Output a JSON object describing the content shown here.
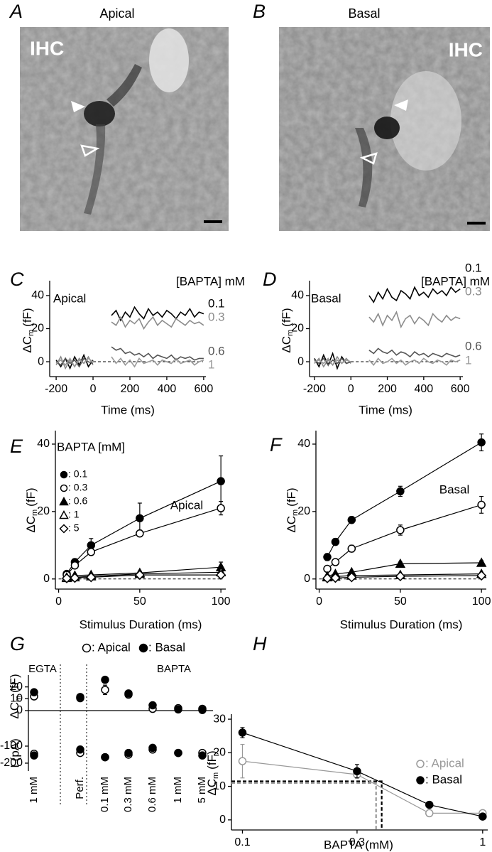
{
  "images": [
    {
      "label": "A",
      "title": "Apical",
      "text": "IHC"
    },
    {
      "label": "B",
      "title": "Basal",
      "text": "IHC"
    }
  ],
  "chart_data": [
    {
      "type": "line",
      "label": "C",
      "title": "Apical",
      "legend_title": "[BAPTA] mM",
      "xlabel": "Time (ms)",
      "ylabel": [
        "ΔC",
        "m",
        "(fF)"
      ],
      "xlim": [
        -235,
        612
      ],
      "ylim": [
        -9,
        49
      ],
      "xticks": [
        -200,
        0,
        200,
        400,
        600
      ],
      "yticks": [
        0,
        20,
        40
      ],
      "dashed_zero": true,
      "x": [
        -200,
        -175,
        -150,
        -125,
        -100,
        -75,
        -50,
        -25,
        0,
        50,
        100,
        125,
        150,
        175,
        200,
        225,
        250,
        275,
        300,
        325,
        350,
        375,
        400,
        425,
        450,
        475,
        500,
        525,
        550,
        575,
        600
      ],
      "series": [
        {
          "name": "0.1",
          "color": "#000000",
          "values": [
            1,
            -3,
            2,
            -4,
            3,
            -2,
            4,
            -3,
            1,
            null,
            28,
            31,
            25,
            30,
            27,
            33,
            29,
            26,
            32,
            28,
            30,
            27,
            31,
            29,
            26,
            30,
            28,
            32,
            27,
            30,
            29
          ]
        },
        {
          "name": "0.3",
          "color": "#8c8c8c",
          "values": [
            -2,
            3,
            -4,
            1,
            -3,
            2,
            -1,
            3,
            -2,
            null,
            24,
            22,
            27,
            21,
            25,
            23,
            26,
            20,
            24,
            27,
            22,
            25,
            23,
            21,
            26,
            24,
            22,
            25,
            23,
            24,
            22
          ]
        },
        {
          "name": "0.6",
          "color": "#555555",
          "values": [
            0,
            -2,
            2,
            -1,
            1,
            -3,
            2,
            0,
            -1,
            null,
            9,
            7,
            8,
            5,
            6,
            4,
            5,
            3,
            5,
            2,
            4,
            3,
            2,
            4,
            1,
            3,
            2,
            3,
            1,
            2,
            2
          ]
        },
        {
          "name": "1",
          "color": "#9a9a9a",
          "values": [
            -1,
            1,
            -2,
            2,
            -3,
            1,
            -1,
            2,
            0,
            null,
            3,
            -1,
            2,
            -2,
            1,
            -3,
            2,
            -1,
            0,
            1,
            -2,
            1,
            0,
            -1,
            2,
            -1,
            0,
            1,
            -2,
            0,
            1
          ]
        }
      ]
    },
    {
      "type": "line",
      "label": "D",
      "title": "Basal",
      "legend_title": "[BAPTA] mM",
      "xlabel": "Time (ms)",
      "ylabel": [
        "ΔC",
        "m",
        "(fF)"
      ],
      "xlim": [
        -227,
        615
      ],
      "ylim": [
        -9,
        49
      ],
      "xticks": [
        -200,
        0,
        200,
        400,
        600
      ],
      "yticks": [
        0,
        20,
        40
      ],
      "dashed_zero": true,
      "x": [
        -200,
        -175,
        -150,
        -125,
        -100,
        -75,
        -50,
        -25,
        0,
        50,
        100,
        125,
        150,
        175,
        200,
        225,
        250,
        275,
        300,
        325,
        350,
        375,
        400,
        425,
        450,
        475,
        500,
        525,
        550,
        575,
        600
      ],
      "series": [
        {
          "name": "0.1",
          "color": "#000000",
          "values": [
            2,
            -3,
            4,
            -2,
            5,
            -4,
            3,
            -1,
            0,
            null,
            40,
            36,
            42,
            38,
            44,
            39,
            37,
            43,
            41,
            38,
            45,
            40,
            42,
            39,
            44,
            41,
            43,
            40,
            45,
            42,
            44
          ]
        },
        {
          "name": "0.3",
          "color": "#8c8c8c",
          "values": [
            -1,
            2,
            -3,
            1,
            -2,
            3,
            -1,
            2,
            -1,
            null,
            27,
            24,
            29,
            22,
            28,
            25,
            30,
            21,
            26,
            28,
            23,
            27,
            25,
            22,
            29,
            26,
            24,
            28,
            25,
            27,
            26
          ]
        },
        {
          "name": "0.6",
          "color": "#555555",
          "values": [
            1,
            -1,
            2,
            -2,
            1,
            -1,
            2,
            -1,
            0,
            null,
            7,
            5,
            8,
            6,
            5,
            7,
            4,
            6,
            5,
            3,
            6,
            4,
            5,
            3,
            5,
            4,
            3,
            5,
            4,
            3,
            4
          ]
        },
        {
          "name": "1",
          "color": "#9a9a9a",
          "values": [
            0,
            1,
            -1,
            2,
            -2,
            1,
            -1,
            1,
            0,
            null,
            1,
            -2,
            2,
            -1,
            0,
            2,
            -1,
            1,
            -2,
            0,
            1,
            -1,
            2,
            0,
            -1,
            1,
            0,
            -2,
            1,
            0,
            1
          ]
        }
      ]
    },
    {
      "type": "line",
      "label": "E",
      "title": "Apical",
      "legend_title": "BAPTA [mM]",
      "xlabel": "Stimulus Duration (ms)",
      "ylabel": [
        "ΔC",
        "m",
        "(fF)"
      ],
      "xlim": [
        -2,
        103
      ],
      "ylim": [
        -3,
        44
      ],
      "xticks": [
        0,
        50,
        100
      ],
      "yticks": [
        0,
        20,
        40
      ],
      "dashed_zero": true,
      "x": [
        5,
        10,
        20,
        50,
        100
      ],
      "series": [
        {
          "name": ": 0.1",
          "color": "#000000",
          "marker": "circle",
          "filled": true,
          "values": [
            1.5,
            5,
            10,
            18,
            29
          ],
          "errors": [
            0.5,
            1,
            2,
            4.5,
            7.5
          ]
        },
        {
          "name": ": 0.3",
          "color": "#000000",
          "marker": "circle",
          "filled": false,
          "values": [
            1.2,
            4,
            8,
            13.5,
            21
          ],
          "errors": [
            0.3,
            0.5,
            1,
            1,
            2
          ]
        },
        {
          "name": ": 0.6",
          "color": "#000000",
          "marker": "triangle",
          "filled": true,
          "values": [
            0.5,
            1,
            1.2,
            1.8,
            3.5
          ],
          "errors": [
            0.2,
            0.3,
            0.3,
            0.5,
            1.5
          ]
        },
        {
          "name": ": 1",
          "color": "#000000",
          "marker": "triangle",
          "filled": false,
          "values": [
            0.3,
            0.5,
            0.8,
            1.5,
            2
          ],
          "errors": [
            0.2,
            0.2,
            0.3,
            0.4,
            0.5
          ]
        },
        {
          "name": ": 5",
          "color": "#000000",
          "marker": "diamond",
          "filled": false,
          "values": [
            0.2,
            0.3,
            0.5,
            1.2,
            1.2
          ],
          "errors": [
            0.1,
            0.2,
            0.2,
            0.3,
            0.4
          ]
        }
      ]
    },
    {
      "type": "line",
      "label": "F",
      "title": "Basal",
      "xlabel": "Stimulus Duration (ms)",
      "ylabel": [
        "ΔC",
        "m",
        "(fF)"
      ],
      "xlim": [
        -2,
        103
      ],
      "ylim": [
        -3,
        44
      ],
      "xticks": [
        0,
        50,
        100
      ],
      "yticks": [
        0,
        20,
        40
      ],
      "dashed_zero": true,
      "x": [
        5,
        10,
        20,
        50,
        100
      ],
      "series": [
        {
          "color": "#000000",
          "marker": "circle",
          "filled": true,
          "values": [
            6.5,
            11,
            17.5,
            26,
            40.5
          ],
          "errors": [
            1,
            1,
            1,
            1.5,
            2.5
          ]
        },
        {
          "color": "#000000",
          "marker": "circle",
          "filled": false,
          "values": [
            3,
            5,
            9,
            14.5,
            22
          ],
          "errors": [
            0.5,
            0.5,
            1,
            1.5,
            2.5
          ]
        },
        {
          "color": "#000000",
          "marker": "triangle",
          "filled": true,
          "values": [
            0.8,
            1.5,
            2,
            4.5,
            4.8
          ],
          "errors": [
            0.2,
            0.3,
            0.3,
            0.5,
            0.6
          ]
        },
        {
          "color": "#000000",
          "marker": "triangle",
          "filled": false,
          "values": [
            0.5,
            0.7,
            1,
            1.2,
            1.5
          ],
          "errors": [
            0.2,
            0.2,
            0.2,
            0.3,
            0.3
          ]
        },
        {
          "color": "#000000",
          "marker": "diamond",
          "filled": false,
          "values": [
            0.2,
            0.3,
            0.5,
            0.8,
            1
          ],
          "errors": [
            0.1,
            0.1,
            0.2,
            0.2,
            0.2
          ]
        }
      ]
    },
    {
      "type": "dot",
      "label": "G",
      "groups": [
        "EGTA",
        "BAPTA"
      ],
      "ylabel": [
        "ΔC",
        "m",
        "(fF)"
      ],
      "y2label": "I (pA)",
      "categories": [
        "1 mM",
        "Perf.",
        "0.1 mM",
        "0.3 mM",
        "0.6 mM",
        "1 mM",
        "5 mM"
      ],
      "ylim": [
        -51,
        30
      ],
      "yticks": [
        0,
        10,
        20
      ],
      "y2lim": [
        -246,
        317
      ],
      "y2ticks": [
        -100,
        -200
      ],
      "series": [
        {
          "name": ": Apical",
          "color": "#000000",
          "filled": false,
          "values": [
            12,
            10.5,
            17.5,
            13.5,
            1.5,
            2,
            1.5
          ],
          "errors": [
            1,
            1,
            4,
            1,
            0.5,
            0.5,
            0.5
          ],
          "y2values": [
            -145,
            -140,
            -165,
            -150,
            -120,
            -140,
            -140
          ],
          "y2errors": [
            8,
            6,
            8,
            15,
            8,
            5,
            6
          ]
        },
        {
          "name": ": Basal",
          "color": "#000000",
          "filled": true,
          "values": [
            15.5,
            11.5,
            26,
            14.5,
            4.5,
            1,
            0.5
          ],
          "errors": [
            1,
            1,
            1.5,
            1,
            0.5,
            0.3,
            0.3
          ],
          "y2values": [
            -155,
            -120,
            -165,
            -140,
            -110,
            -140,
            -155
          ],
          "y2errors": [
            6,
            5,
            6,
            8,
            6,
            5,
            8
          ]
        }
      ]
    },
    {
      "type": "line",
      "label": "H",
      "xlog": true,
      "xlabel": "BAPTA (mM)",
      "ylabel": [
        "ΔC",
        "m",
        "(fF)"
      ],
      "xlim": [
        0.09,
        1.05
      ],
      "ylim": [
        -3,
        31.5
      ],
      "xticks": [
        0.1,
        0.3,
        1
      ],
      "yticks": [
        0,
        10,
        20,
        30
      ],
      "x": [
        0.1,
        0.3,
        0.6,
        1
      ],
      "guides": [
        {
          "x": 0.38,
          "y": 11.5,
          "color": "#000000"
        },
        {
          "x": 0.36,
          "y": 11,
          "color": "#999999"
        }
      ],
      "series": [
        {
          "name": ": Apical",
          "color": "#999999",
          "marker": "circle",
          "filled": false,
          "values": [
            17.5,
            13.5,
            2,
            2
          ],
          "errors": [
            5,
            1,
            0.3,
            0.3
          ]
        },
        {
          "name": ": Basal",
          "color": "#000000",
          "marker": "circle",
          "filled": true,
          "values": [
            26,
            14.5,
            4.5,
            1
          ],
          "errors": [
            1.5,
            2,
            0.5,
            0.3
          ]
        }
      ]
    }
  ]
}
